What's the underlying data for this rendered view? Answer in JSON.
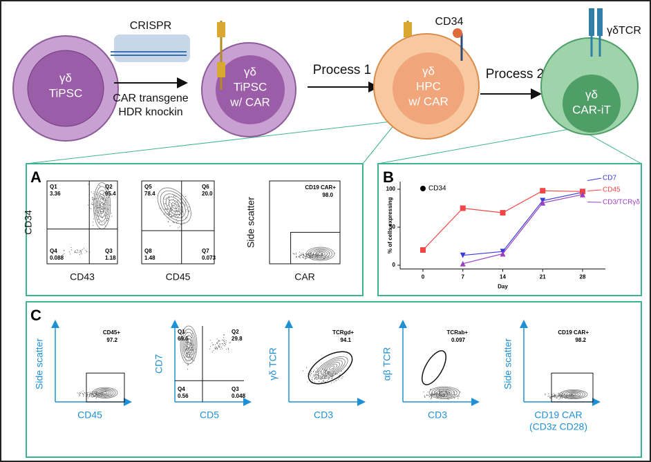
{
  "schematic": {
    "crispr": "CRISPR",
    "cell1": [
      "γδ",
      "TiPSC"
    ],
    "knockin": [
      "CAR transgene",
      "HDR knockin"
    ],
    "cell2": [
      "γδ",
      "TiPSC",
      "w/ CAR"
    ],
    "process1": "Process 1",
    "cd34": "CD34",
    "cell3": [
      "γδ",
      "HPC",
      "w/ CAR"
    ],
    "process2": "Process 2",
    "tcr": "γδTCR",
    "cell4": [
      "γδ",
      "CAR-iT"
    ]
  },
  "panel_a": {
    "label": "A",
    "plots": [
      {
        "y_label": "CD34",
        "x_label": "CD43",
        "gates": [
          {
            "name": "Q1",
            "value": "3.36"
          },
          {
            "name": "Q2",
            "value": "95.4"
          },
          {
            "name": "Q4",
            "value": "0.088"
          },
          {
            "name": "Q3",
            "value": "1.18"
          }
        ]
      },
      {
        "x_label": "CD45",
        "gates": [
          {
            "name": "Q5",
            "value": "78.4"
          },
          {
            "name": "Q6",
            "value": "20.0"
          },
          {
            "name": "Q8",
            "value": "1.48"
          },
          {
            "name": "Q7",
            "value": "0.073"
          }
        ]
      },
      {
        "y_label": "Side scatter",
        "x_label": "CAR",
        "gates": [
          {
            "name": "CD19 CAR+",
            "value": "98.0"
          }
        ]
      }
    ]
  },
  "panel_b": {
    "label": "B",
    "chart_data": {
      "type": "line",
      "y_label": "% of cells expressing",
      "x_label": "Day",
      "x": [
        0,
        7,
        14,
        21,
        28
      ],
      "xlim": [
        -4,
        32
      ],
      "xticks": [
        0,
        7,
        14,
        21,
        28
      ],
      "ylim": [
        -5,
        110
      ],
      "yticks": [
        0,
        50,
        100
      ],
      "series": [
        {
          "name": "CD34",
          "color": "#000000",
          "marker": "circle",
          "values": [
            null,
            null,
            null,
            null,
            null
          ]
        },
        {
          "name": "CD7",
          "color": "#3a3adf",
          "marker": "triangle-down",
          "values": [
            null,
            13,
            18,
            85,
            96
          ]
        },
        {
          "name": "CD45",
          "color": "#f04545",
          "marker": "square",
          "values": [
            20,
            75,
            69,
            98,
            97
          ]
        },
        {
          "name": "CD3/TCRγδ",
          "color": "#9a3fc0",
          "marker": "triangle",
          "values": [
            null,
            2,
            15,
            82,
            93
          ]
        }
      ]
    }
  },
  "panel_c": {
    "label": "C",
    "plots": [
      {
        "y_label": [
          "Side scatter"
        ],
        "x_label": [
          "CD45"
        ],
        "gates": [
          {
            "name": "CD45+",
            "value": "97.2"
          }
        ]
      },
      {
        "y_label": [
          "CD7"
        ],
        "x_label": [
          "CD5"
        ],
        "gates": [
          {
            "name": "Q1",
            "value": "69.6"
          },
          {
            "name": "Q2",
            "value": "29.8"
          },
          {
            "name": "Q4",
            "value": "0.56"
          },
          {
            "name": "Q3",
            "value": "0.048"
          }
        ]
      },
      {
        "y_label": [
          "γδ TCR"
        ],
        "x_label": [
          "CD3"
        ],
        "gates": [
          {
            "name": "TCRgd+",
            "value": "94.1"
          }
        ]
      },
      {
        "y_label": [
          "αβ TCR"
        ],
        "x_label": [
          "CD3"
        ],
        "gates": [
          {
            "name": "TCRab+",
            "value": "0.097"
          }
        ]
      },
      {
        "y_label": [
          "Side scatter"
        ],
        "x_label": [
          "CD19 CAR",
          "(CD3z CD28)"
        ],
        "gates": [
          {
            "name": "CD19 CAR+",
            "value": "98.2"
          }
        ]
      }
    ]
  }
}
